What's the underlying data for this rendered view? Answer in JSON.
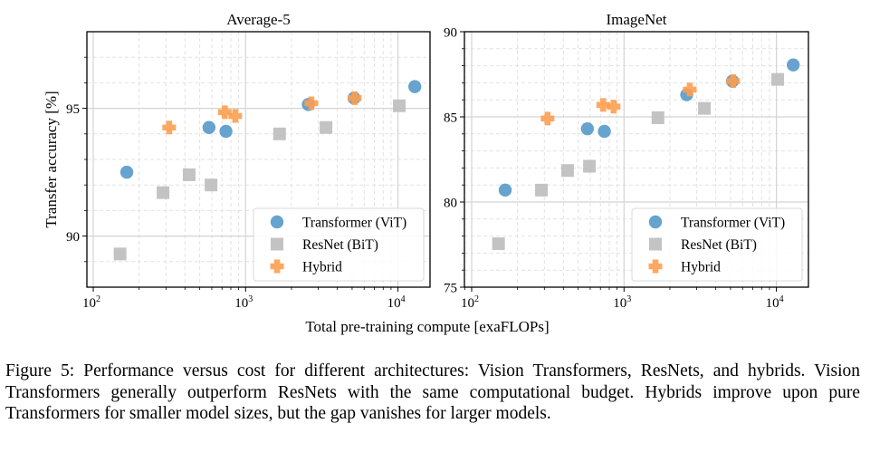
{
  "figure": {
    "shared_xlabel": "Total pre-training compute [exaFLOPs]",
    "shared_ylabel": "Transfer accuracy [%]",
    "caption": "Figure 5: Performance versus cost for different architectures: Vision Transformers, ResNets, and hybrids. Vision Transformers generally outperform ResNets with the same computational budget. Hybrids improve upon pure Transformers for smaller model sizes, but the gap vanishes for larger models."
  },
  "colors": {
    "vit": "#5f9ecb",
    "bit": "#c0c0c0",
    "hybrid": "#fd9e4f"
  },
  "legend": [
    {
      "key": "vit",
      "label": "Transformer (ViT)",
      "marker": "circle"
    },
    {
      "key": "bit",
      "label": "ResNet (BiT)",
      "marker": "square"
    },
    {
      "key": "hybrid",
      "label": "Hybrid",
      "marker": "plus"
    }
  ],
  "chart_data": [
    {
      "type": "scatter",
      "title": "Average-5",
      "xlabel": "Total pre-training compute [exaFLOPs]",
      "ylabel": "Transfer accuracy [%]",
      "xscale": "log",
      "xlim": [
        95,
        17000
      ],
      "ylim": [
        88,
        98
      ],
      "xticks": [
        100,
        1000,
        10000
      ],
      "xtick_labels": [
        "10",
        "10",
        "10"
      ],
      "xtick_exponents": [
        "2",
        "3",
        "4"
      ],
      "yticks": [
        90,
        95
      ],
      "ytick_labels": [
        "90",
        "95"
      ],
      "yminor_step": 1,
      "grid": true,
      "legend_position": "lower-right",
      "series": [
        {
          "name": "Transformer (ViT)",
          "key": "vit",
          "marker": "circle",
          "points": [
            [
              166,
              92.5
            ],
            [
              575,
              94.25
            ],
            [
              743,
              94.1
            ],
            [
              2580,
              95.15
            ],
            [
              5150,
              95.4
            ],
            [
              12900,
              95.85
            ]
          ]
        },
        {
          "name": "ResNet (BiT)",
          "key": "bit",
          "marker": "square",
          "points": [
            [
              150,
              89.3
            ],
            [
              287,
              91.7
            ],
            [
              426,
              92.4
            ],
            [
              593,
              92.0
            ],
            [
              1670,
              94.0
            ],
            [
              3370,
              94.25
            ],
            [
              10200,
              95.1
            ]
          ]
        },
        {
          "name": "Hybrid",
          "key": "hybrid",
          "marker": "plus",
          "points": [
            [
              315,
              94.25
            ],
            [
              730,
              94.85
            ],
            [
              855,
              94.7
            ],
            [
              2700,
              95.2
            ],
            [
              5200,
              95.4
            ]
          ]
        }
      ]
    },
    {
      "type": "scatter",
      "title": "ImageNet",
      "xlabel": "Total pre-training compute [exaFLOPs]",
      "ylabel": "",
      "xscale": "log",
      "xlim": [
        95,
        17000
      ],
      "ylim": [
        75,
        90
      ],
      "xticks": [
        100,
        1000,
        10000
      ],
      "xtick_labels": [
        "10",
        "10",
        "10"
      ],
      "xtick_exponents": [
        "2",
        "3",
        "4"
      ],
      "yticks": [
        75,
        80,
        85,
        90
      ],
      "ytick_labels": [
        "75",
        "80",
        "85",
        "90"
      ],
      "yminor_step": 1,
      "grid": true,
      "legend_position": "lower-right",
      "series": [
        {
          "name": "Transformer (ViT)",
          "key": "vit",
          "marker": "circle",
          "points": [
            [
              166,
              80.7
            ],
            [
              575,
              84.3
            ],
            [
              743,
              84.15
            ],
            [
              2580,
              86.3
            ],
            [
              5150,
              87.1
            ],
            [
              12900,
              88.05
            ]
          ]
        },
        {
          "name": "ResNet (BiT)",
          "key": "bit",
          "marker": "square",
          "points": [
            [
              150,
              77.55
            ],
            [
              287,
              80.7
            ],
            [
              426,
              81.85
            ],
            [
              593,
              82.1
            ],
            [
              1670,
              84.95
            ],
            [
              3370,
              85.5
            ],
            [
              10200,
              87.2
            ]
          ]
        },
        {
          "name": "Hybrid",
          "key": "hybrid",
          "marker": "plus",
          "points": [
            [
              315,
              84.9
            ],
            [
              730,
              85.7
            ],
            [
              855,
              85.6
            ],
            [
              2700,
              86.6
            ],
            [
              5200,
              87.1
            ]
          ]
        }
      ]
    }
  ]
}
